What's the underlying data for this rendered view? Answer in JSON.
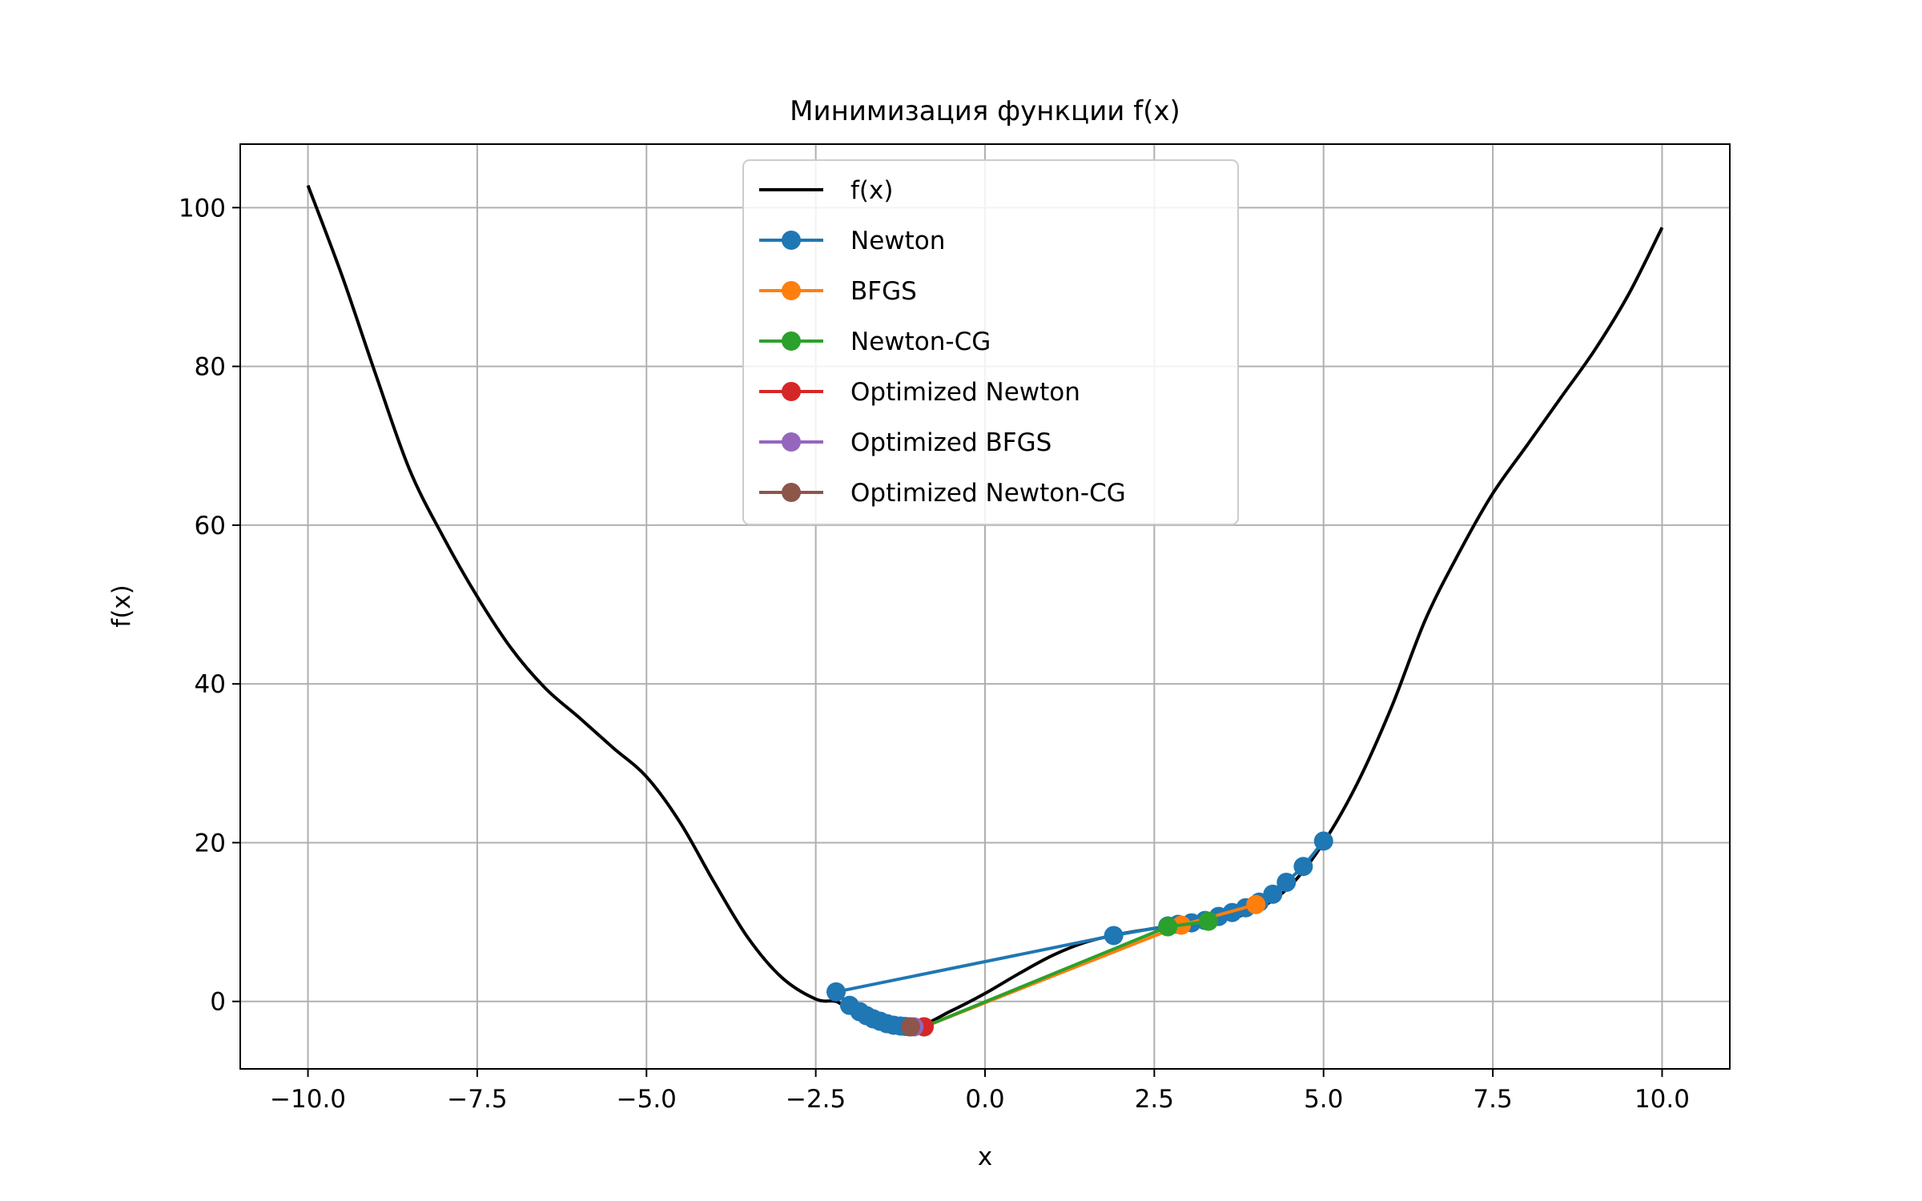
{
  "chart_data": {
    "type": "line",
    "title": "Минимизация функции f(x)",
    "xlabel": "x",
    "ylabel": "f(x)",
    "xlim": [
      -11.0,
      11.0
    ],
    "ylim": [
      -8.5,
      108.0
    ],
    "xticks": [
      -10.0,
      -7.5,
      -5.0,
      -2.5,
      0.0,
      2.5,
      5.0,
      7.5,
      10.0
    ],
    "xtick_labels": [
      "−10.0",
      "−7.5",
      "−5.0",
      "−2.5",
      "0.0",
      "2.5",
      "5.0",
      "7.5",
      "10.0"
    ],
    "yticks": [
      0,
      20,
      40,
      60,
      80,
      100
    ],
    "ytick_labels": [
      "0",
      "20",
      "40",
      "60",
      "80",
      "100"
    ],
    "grid": true,
    "legend_position": "top-center",
    "function_curve": {
      "name": "f(x)",
      "color": "#000000",
      "x": [
        -10.0,
        -9.5,
        -9.0,
        -8.5,
        -8.0,
        -7.5,
        -7.0,
        -6.5,
        -6.0,
        -5.5,
        -5.0,
        -4.5,
        -4.0,
        -3.5,
        -3.0,
        -2.5,
        -2.2,
        -2.0,
        -1.5,
        -1.0,
        -0.5,
        0.0,
        0.5,
        1.0,
        1.5,
        2.0,
        2.5,
        3.0,
        3.5,
        4.0,
        4.5,
        5.0,
        5.5,
        6.0,
        6.5,
        7.0,
        7.5,
        8.0,
        8.5,
        9.0,
        9.5,
        10.0
      ],
      "y": [
        102.8,
        91.5,
        79.0,
        67.0,
        58.5,
        51.0,
        44.5,
        39.5,
        35.8,
        32.0,
        28.3,
        22.5,
        15.0,
        8.0,
        3.0,
        0.3,
        0.0,
        -1.0,
        -2.5,
        -3.1,
        -1.2,
        1.0,
        3.5,
        5.8,
        7.5,
        8.5,
        9.2,
        9.8,
        10.3,
        11.5,
        14.5,
        20.0,
        27.5,
        37.0,
        48.0,
        56.5,
        64.0,
        70.0,
        76.0,
        82.0,
        89.0,
        97.5
      ]
    },
    "series": [
      {
        "name": "Newton",
        "color": "#1f77b4",
        "x": [
          5.0,
          4.7,
          4.45,
          4.25,
          4.05,
          3.85,
          3.65,
          3.45,
          3.25,
          3.05,
          2.85,
          2.7,
          1.9,
          -2.2,
          -2.0,
          -1.85,
          -1.75,
          -1.65,
          -1.55,
          -1.45,
          -1.35,
          -1.25,
          -1.18,
          -1.12
        ],
        "y": [
          20.2,
          17.0,
          15.0,
          13.5,
          12.5,
          11.8,
          11.2,
          10.7,
          10.2,
          9.9,
          9.7,
          9.5,
          8.3,
          1.2,
          -0.5,
          -1.3,
          -1.8,
          -2.2,
          -2.5,
          -2.8,
          -3.0,
          -3.1,
          -3.15,
          -3.2
        ]
      },
      {
        "name": "BFGS",
        "color": "#ff7f0e",
        "x": [
          4.0,
          2.9,
          -0.9
        ],
        "y": [
          12.2,
          9.6,
          -3.2
        ]
      },
      {
        "name": "Newton-CG",
        "color": "#2ca02c",
        "x": [
          3.3,
          2.7,
          -0.9
        ],
        "y": [
          10.1,
          9.4,
          -3.2
        ]
      },
      {
        "name": "Optimized Newton",
        "color": "#d62728",
        "x": [
          -0.9
        ],
        "y": [
          -3.2
        ]
      },
      {
        "name": "Optimized BFGS",
        "color": "#9467bd",
        "x": [
          -1.05
        ],
        "y": [
          -3.2
        ]
      },
      {
        "name": "Optimized Newton-CG",
        "color": "#8c564b",
        "x": [
          -1.1
        ],
        "y": [
          -3.2
        ]
      }
    ]
  }
}
